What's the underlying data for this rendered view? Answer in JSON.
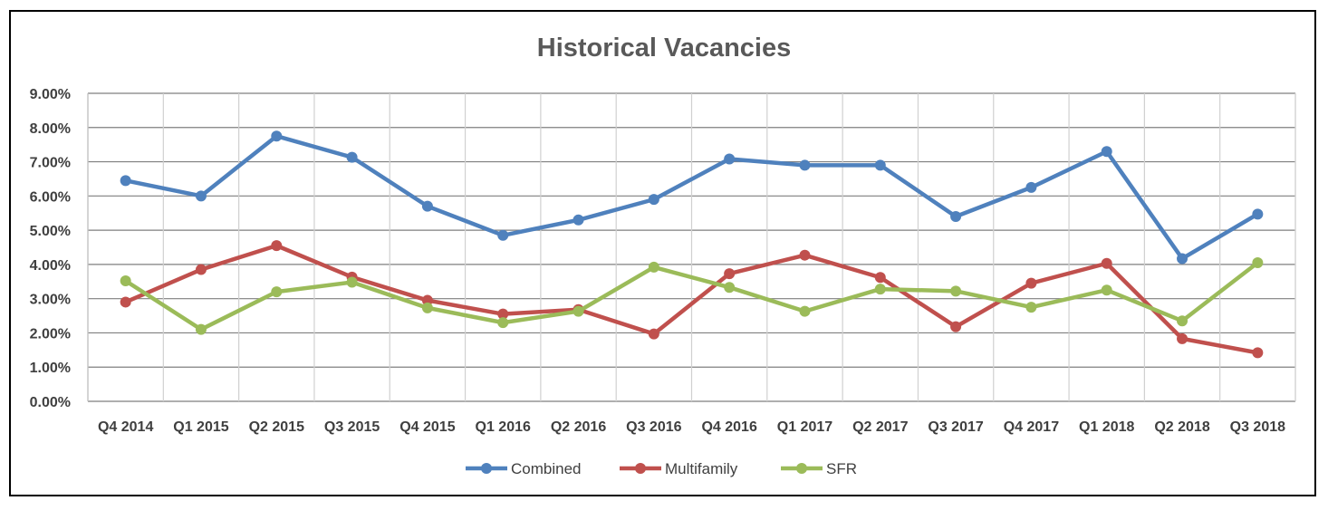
{
  "chart_data": {
    "type": "line",
    "title": "Historical Vacancies",
    "xlabel": "",
    "ylabel": "",
    "categories": [
      "Q4 2014",
      "Q1 2015",
      "Q2 2015",
      "Q3 2015",
      "Q4 2015",
      "Q1 2016",
      "Q2 2016",
      "Q3 2016",
      "Q4 2016",
      "Q1 2017",
      "Q2 2017",
      "Q3 2017",
      "Q4 2017",
      "Q1 2018",
      "Q2 2018",
      "Q3 2018"
    ],
    "ylim": [
      0,
      0.09
    ],
    "yticks": [
      "0.00%",
      "1.00%",
      "2.00%",
      "3.00%",
      "4.00%",
      "5.00%",
      "6.00%",
      "7.00%",
      "8.00%",
      "9.00%"
    ],
    "grid": true,
    "legend_position": "bottom",
    "series": [
      {
        "name": "Combined",
        "color": "#4F81BD",
        "values": [
          0.0645,
          0.06,
          0.0775,
          0.0713,
          0.057,
          0.0485,
          0.053,
          0.059,
          0.0708,
          0.069,
          0.069,
          0.054,
          0.0625,
          0.073,
          0.0417,
          0.0547
        ]
      },
      {
        "name": "Multifamily",
        "color": "#C0504D",
        "values": [
          0.029,
          0.0385,
          0.0455,
          0.0363,
          0.0295,
          0.0255,
          0.0268,
          0.0197,
          0.0373,
          0.0427,
          0.0362,
          0.0218,
          0.0345,
          0.0403,
          0.0183,
          0.0142
        ]
      },
      {
        "name": "SFR",
        "color": "#9BBB59",
        "values": [
          0.0352,
          0.021,
          0.032,
          0.0348,
          0.0273,
          0.023,
          0.0263,
          0.0392,
          0.0333,
          0.0263,
          0.0328,
          0.0322,
          0.0275,
          0.0325,
          0.0235,
          0.0405
        ]
      }
    ]
  },
  "colors": {
    "grid": "#7f7f7f",
    "text": "#3f3f3f",
    "title": "#595959"
  }
}
